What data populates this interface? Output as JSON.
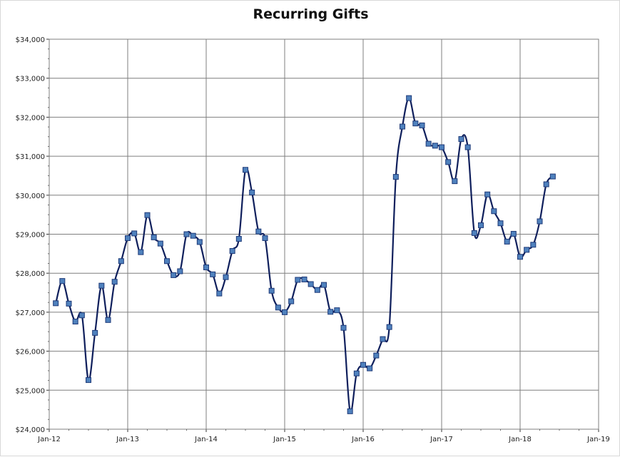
{
  "chart_data": {
    "type": "line",
    "title": "Recurring Gifts",
    "xlabel": "",
    "ylabel": "",
    "ylim": [
      24000,
      34000
    ],
    "xlim": [
      "2012-01",
      "2019-01"
    ],
    "y_ticks": [
      "$24,000",
      "$25,000",
      "$26,000",
      "$27,000",
      "$28,000",
      "$29,000",
      "$30,000",
      "$31,000",
      "$32,000",
      "$33,000",
      "$34,000"
    ],
    "y_tick_values": [
      24000,
      25000,
      26000,
      27000,
      28000,
      29000,
      30000,
      31000,
      32000,
      33000,
      34000
    ],
    "x_ticks": [
      "Jan-12",
      "Jan-13",
      "Jan-14",
      "Jan-15",
      "Jan-16",
      "Jan-17",
      "Jan-18",
      "Jan-19"
    ],
    "x_tick_values": [
      "2012-01",
      "2013-01",
      "2014-01",
      "2015-01",
      "2016-01",
      "2017-01",
      "2018-01",
      "2019-01"
    ],
    "grid": true,
    "legend": "none",
    "colors": {
      "line": "#0f1f5c",
      "marker_fill": "#4f81bd",
      "marker_edge": "#1f3a78",
      "grid": "#7f7f7f"
    },
    "series": [
      {
        "x": [
          "2012-02",
          "2012-03",
          "2012-04",
          "2012-05",
          "2012-06",
          "2012-07",
          "2012-08",
          "2012-09",
          "2012-10",
          "2012-11",
          "2012-12",
          "2013-01",
          "2013-02",
          "2013-03",
          "2013-04",
          "2013-05",
          "2013-06",
          "2013-07",
          "2013-08",
          "2013-09",
          "2013-10",
          "2013-11",
          "2013-12",
          "2014-01",
          "2014-02",
          "2014-03",
          "2014-04",
          "2014-05",
          "2014-06",
          "2014-07",
          "2014-08",
          "2014-09",
          "2014-10",
          "2014-11",
          "2014-12",
          "2015-01",
          "2015-02",
          "2015-03",
          "2015-04",
          "2015-05",
          "2015-06",
          "2015-07",
          "2015-08",
          "2015-09",
          "2015-10",
          "2015-11",
          "2015-12",
          "2016-01",
          "2016-02",
          "2016-03",
          "2016-04",
          "2016-05",
          "2016-06",
          "2016-07",
          "2016-08",
          "2016-09",
          "2016-10",
          "2016-11",
          "2016-12",
          "2017-01",
          "2017-02",
          "2017-03",
          "2017-04",
          "2017-05",
          "2017-06",
          "2017-07",
          "2017-08",
          "2017-09",
          "2017-10",
          "2017-11",
          "2017-12",
          "2018-01",
          "2018-02",
          "2018-03",
          "2018-04",
          "2018-05",
          "2018-06"
        ],
        "values": [
          27230,
          27800,
          27220,
          26760,
          26920,
          25260,
          26470,
          27680,
          26800,
          27780,
          28310,
          28900,
          29020,
          28540,
          29490,
          28920,
          28760,
          28310,
          27950,
          28050,
          29000,
          28960,
          28800,
          28150,
          27970,
          27480,
          27900,
          28570,
          28880,
          30650,
          30070,
          29070,
          28900,
          27550,
          27120,
          27000,
          27280,
          27830,
          27840,
          27720,
          27570,
          27700,
          27010,
          27050,
          26600,
          24460,
          25430,
          25650,
          25560,
          25890,
          26310,
          26620,
          30470,
          31760,
          32490,
          31840,
          31790,
          31320,
          31270,
          31230,
          30850,
          30360,
          31440,
          31230,
          29030,
          29230,
          30020,
          29590,
          29280,
          28810,
          29010,
          28420,
          28600,
          28730,
          29330,
          30280,
          30480
        ]
      }
    ]
  }
}
